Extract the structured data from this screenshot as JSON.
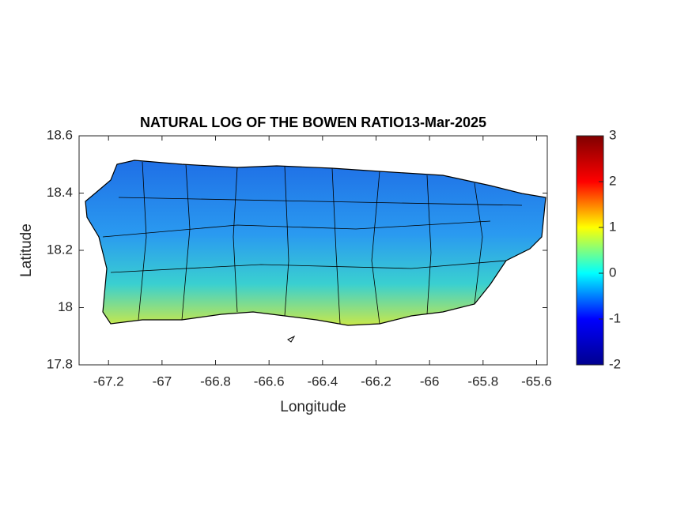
{
  "chart_data": {
    "type": "heatmap",
    "title": "NATURAL LOG OF THE BOWEN RATIO13-Mar-2025",
    "xlabel": "Longitude",
    "ylabel": "Latitude",
    "xlim": [
      -67.31,
      -65.56
    ],
    "ylim": [
      17.8,
      18.6
    ],
    "xticks": [
      -67.2,
      -67,
      -66.8,
      -66.6,
      -66.4,
      -66.2,
      -66,
      -65.8,
      -65.6
    ],
    "yticks": [
      17.8,
      18,
      18.2,
      18.4,
      18.6
    ],
    "colorbar": {
      "lim": [
        -2,
        3
      ],
      "ticks": [
        -2,
        -1,
        0,
        1,
        2,
        3
      ],
      "colormap": "jet"
    }
  }
}
